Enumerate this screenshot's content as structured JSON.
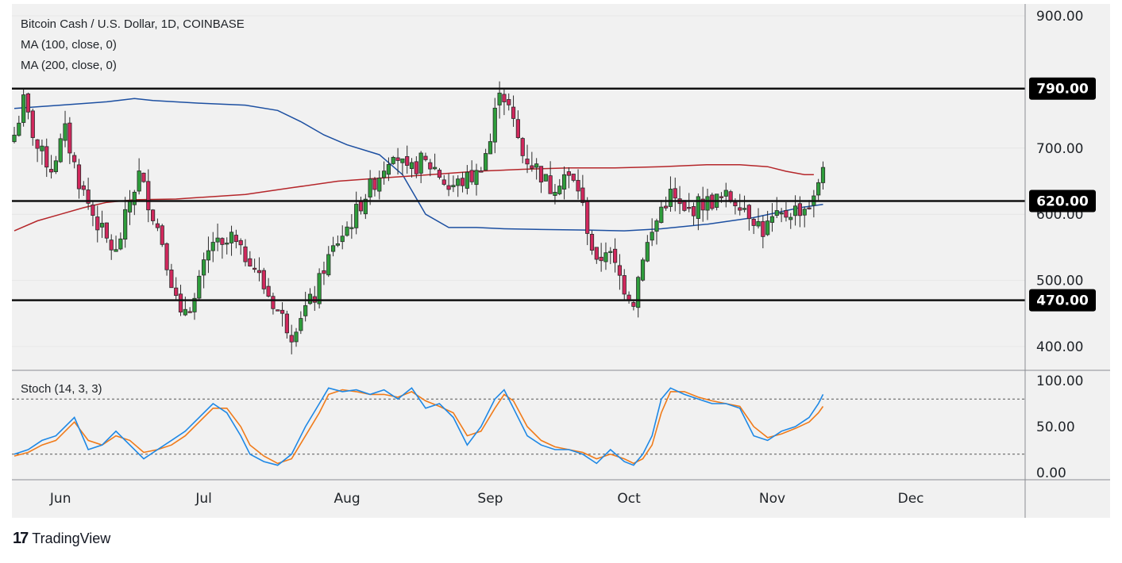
{
  "chart_data": {
    "type": "candlestick",
    "title": "Bitcoin Cash / U.S. Dollar, 1D, COINBASE",
    "indicators": [
      "MA (100, close, 0)",
      "MA (200, close, 0)"
    ],
    "x_ticks": [
      "Jun",
      "Jul",
      "Aug",
      "Sep",
      "Oct",
      "Nov",
      "Dec"
    ],
    "y_ticks": [
      "900.00",
      "700.00",
      "600.00",
      "500.00",
      "400.00"
    ],
    "ylim": [
      355,
      905
    ],
    "xlim_days": [
      0,
      215
    ],
    "levels": [
      {
        "value": 790,
        "label": "790.00"
      },
      {
        "value": 620,
        "label": "620.00"
      },
      {
        "value": 470,
        "label": "470.00"
      }
    ],
    "anchors": [
      [
        0,
        720
      ],
      [
        2,
        770
      ],
      [
        5,
        700
      ],
      [
        8,
        670
      ],
      [
        11,
        725
      ],
      [
        14,
        650
      ],
      [
        17,
        600
      ],
      [
        20,
        560
      ],
      [
        22,
        540
      ],
      [
        25,
        620
      ],
      [
        27,
        660
      ],
      [
        30,
        600
      ],
      [
        32,
        560
      ],
      [
        34,
        500
      ],
      [
        36,
        440
      ],
      [
        37,
        460
      ],
      [
        39,
        470
      ],
      [
        41,
        520
      ],
      [
        43,
        560
      ],
      [
        45,
        545
      ],
      [
        47,
        565
      ],
      [
        49,
        540
      ],
      [
        51,
        535
      ],
      [
        54,
        490
      ],
      [
        57,
        455
      ],
      [
        60,
        420
      ],
      [
        62,
        450
      ],
      [
        65,
        475
      ],
      [
        67,
        520
      ],
      [
        70,
        560
      ],
      [
        73,
        590
      ],
      [
        76,
        630
      ],
      [
        79,
        660
      ],
      [
        82,
        700
      ],
      [
        85,
        660
      ],
      [
        88,
        680
      ],
      [
        91,
        670
      ],
      [
        94,
        640
      ],
      [
        97,
        650
      ],
      [
        100,
        660
      ],
      [
        103,
        710
      ],
      [
        105,
        795
      ],
      [
        107,
        760
      ],
      [
        110,
        690
      ],
      [
        113,
        670
      ],
      [
        116,
        640
      ],
      [
        119,
        660
      ],
      [
        122,
        640
      ],
      [
        124,
        580
      ],
      [
        126,
        520
      ],
      [
        128,
        550
      ],
      [
        130,
        520
      ],
      [
        132,
        490
      ],
      [
        134,
        470
      ],
      [
        136,
        540
      ],
      [
        138,
        570
      ],
      [
        140,
        610
      ],
      [
        142,
        630
      ],
      [
        145,
        600
      ],
      [
        148,
        615
      ],
      [
        151,
        620
      ],
      [
        154,
        625
      ],
      [
        157,
        620
      ],
      [
        160,
        595
      ],
      [
        162,
        575
      ],
      [
        164,
        590
      ],
      [
        166,
        595
      ],
      [
        168,
        605
      ],
      [
        171,
        610
      ],
      [
        173,
        620
      ],
      [
        175,
        680
      ]
    ],
    "ma100": [
      [
        0,
        760
      ],
      [
        10,
        765
      ],
      [
        20,
        770
      ],
      [
        26,
        775
      ],
      [
        30,
        772
      ],
      [
        40,
        768
      ],
      [
        50,
        765
      ],
      [
        57,
        757
      ],
      [
        62,
        740
      ],
      [
        67,
        720
      ],
      [
        72,
        705
      ],
      [
        79,
        690
      ],
      [
        84,
        660
      ],
      [
        89,
        600
      ],
      [
        94,
        580
      ],
      [
        97,
        580
      ],
      [
        100,
        580
      ],
      [
        106,
        578
      ],
      [
        114,
        577
      ],
      [
        125,
        576
      ],
      [
        132,
        575
      ],
      [
        140,
        578
      ],
      [
        150,
        585
      ],
      [
        160,
        595
      ],
      [
        170,
        610
      ],
      [
        175,
        615
      ]
    ],
    "ma200": [
      [
        0,
        575
      ],
      [
        5,
        590
      ],
      [
        10,
        600
      ],
      [
        15,
        610
      ],
      [
        20,
        618
      ],
      [
        26,
        622
      ],
      [
        35,
        623
      ],
      [
        50,
        630
      ],
      [
        60,
        640
      ],
      [
        70,
        650
      ],
      [
        80,
        655
      ],
      [
        90,
        660
      ],
      [
        100,
        665
      ],
      [
        110,
        668
      ],
      [
        120,
        670
      ],
      [
        130,
        670
      ],
      [
        140,
        672
      ],
      [
        150,
        675
      ],
      [
        157,
        675
      ],
      [
        163,
        672
      ],
      [
        167,
        665
      ],
      [
        171,
        660
      ],
      [
        173,
        660
      ]
    ],
    "stoch_label": "Stoch (14, 3, 3)",
    "stoch_y_ticks": [
      "100.00",
      "50.00",
      "0.00"
    ],
    "stoch_ylim": [
      0,
      100
    ],
    "stoch_levels": [
      80,
      20
    ],
    "stoch_k_anchors": [
      [
        0,
        20
      ],
      [
        3,
        25
      ],
      [
        6,
        35
      ],
      [
        9,
        40
      ],
      [
        13,
        60
      ],
      [
        16,
        25
      ],
      [
        19,
        30
      ],
      [
        22,
        45
      ],
      [
        25,
        30
      ],
      [
        28,
        15
      ],
      [
        31,
        25
      ],
      [
        34,
        35
      ],
      [
        37,
        45
      ],
      [
        40,
        60
      ],
      [
        43,
        75
      ],
      [
        46,
        65
      ],
      [
        49,
        40
      ],
      [
        51,
        20
      ],
      [
        54,
        12
      ],
      [
        57,
        8
      ],
      [
        60,
        20
      ],
      [
        63,
        50
      ],
      [
        66,
        75
      ],
      [
        68,
        92
      ],
      [
        71,
        88
      ],
      [
        74,
        90
      ],
      [
        77,
        85
      ],
      [
        80,
        90
      ],
      [
        83,
        80
      ],
      [
        86,
        92
      ],
      [
        89,
        70
      ],
      [
        92,
        75
      ],
      [
        95,
        60
      ],
      [
        98,
        30
      ],
      [
        101,
        50
      ],
      [
        104,
        80
      ],
      [
        106,
        90
      ],
      [
        108,
        70
      ],
      [
        111,
        40
      ],
      [
        114,
        30
      ],
      [
        117,
        25
      ],
      [
        120,
        25
      ],
      [
        123,
        20
      ],
      [
        126,
        10
      ],
      [
        129,
        25
      ],
      [
        132,
        12
      ],
      [
        134,
        8
      ],
      [
        136,
        20
      ],
      [
        138,
        40
      ],
      [
        140,
        80
      ],
      [
        142,
        92
      ],
      [
        145,
        85
      ],
      [
        148,
        80
      ],
      [
        151,
        75
      ],
      [
        154,
        75
      ],
      [
        157,
        70
      ],
      [
        160,
        40
      ],
      [
        163,
        35
      ],
      [
        166,
        45
      ],
      [
        169,
        50
      ],
      [
        172,
        60
      ],
      [
        174,
        75
      ],
      [
        175,
        85
      ]
    ],
    "stoch_d_anchors": [
      [
        0,
        18
      ],
      [
        3,
        22
      ],
      [
        6,
        30
      ],
      [
        9,
        35
      ],
      [
        13,
        55
      ],
      [
        16,
        35
      ],
      [
        19,
        30
      ],
      [
        22,
        40
      ],
      [
        25,
        35
      ],
      [
        28,
        22
      ],
      [
        31,
        25
      ],
      [
        34,
        30
      ],
      [
        37,
        40
      ],
      [
        40,
        55
      ],
      [
        43,
        70
      ],
      [
        46,
        70
      ],
      [
        49,
        50
      ],
      [
        51,
        30
      ],
      [
        54,
        18
      ],
      [
        57,
        10
      ],
      [
        60,
        15
      ],
      [
        63,
        40
      ],
      [
        66,
        65
      ],
      [
        68,
        85
      ],
      [
        71,
        90
      ],
      [
        74,
        88
      ],
      [
        77,
        85
      ],
      [
        80,
        85
      ],
      [
        83,
        82
      ],
      [
        86,
        88
      ],
      [
        89,
        78
      ],
      [
        92,
        72
      ],
      [
        95,
        65
      ],
      [
        98,
        40
      ],
      [
        101,
        45
      ],
      [
        104,
        70
      ],
      [
        106,
        85
      ],
      [
        108,
        78
      ],
      [
        111,
        50
      ],
      [
        114,
        35
      ],
      [
        117,
        28
      ],
      [
        120,
        25
      ],
      [
        123,
        22
      ],
      [
        126,
        15
      ],
      [
        129,
        20
      ],
      [
        132,
        15
      ],
      [
        134,
        10
      ],
      [
        136,
        15
      ],
      [
        138,
        30
      ],
      [
        140,
        65
      ],
      [
        142,
        88
      ],
      [
        145,
        88
      ],
      [
        148,
        82
      ],
      [
        151,
        78
      ],
      [
        154,
        75
      ],
      [
        157,
        72
      ],
      [
        160,
        50
      ],
      [
        163,
        38
      ],
      [
        166,
        42
      ],
      [
        169,
        48
      ],
      [
        172,
        55
      ],
      [
        174,
        65
      ],
      [
        175,
        72
      ]
    ],
    "grid": true,
    "legend_position": "top-left"
  },
  "brand": {
    "name": "TradingView"
  }
}
